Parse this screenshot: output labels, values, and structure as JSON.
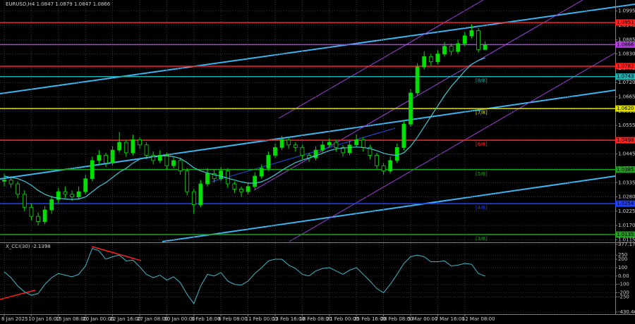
{
  "chart_data": {
    "type": "candlestick",
    "title": "EURUSD,H4 1.0847 1.0879 1.0847 1.0866",
    "categories": [
      "8 Jan 2025",
      null,
      null,
      null,
      "10 Jan 16:00",
      null,
      null,
      null,
      "15 Jan 08:00",
      null,
      null,
      null,
      "20 Jan 00:00",
      null,
      null,
      null,
      "22 Jan 16:00",
      null,
      null,
      null,
      "27 Jan 08:00",
      null,
      null,
      null,
      "30 Jan 00:00",
      null,
      null,
      null,
      "3 Feb 16:00",
      null,
      null,
      null,
      "6 Feb 08:00",
      null,
      null,
      null,
      "11 Feb 00:00",
      null,
      null,
      null,
      "13 Feb 16:00",
      null,
      null,
      null,
      "18 Feb 08:00",
      null,
      null,
      null,
      "21 Feb 00:00",
      null,
      null,
      null,
      "25 Feb 16:00",
      null,
      null,
      null,
      "28 Feb 08:00",
      null,
      null,
      null,
      "5 Mar 00:00",
      null,
      null,
      null,
      "7 Mar 16:00",
      null,
      null,
      null,
      "12 Mar 08:00",
      null,
      null,
      null
    ],
    "candles": [
      [
        1.034,
        1.037,
        1.032,
        1.0345
      ],
      [
        1.0345,
        1.036,
        1.0315,
        1.033
      ],
      [
        1.033,
        1.034,
        1.0275,
        1.029
      ],
      [
        1.029,
        1.0305,
        1.0225,
        1.024
      ],
      [
        1.024,
        1.0255,
        1.019,
        1.0205
      ],
      [
        1.0205,
        1.022,
        1.017,
        1.0185
      ],
      [
        1.0185,
        1.0245,
        1.0175,
        1.023
      ],
      [
        1.023,
        1.0285,
        1.0215,
        1.027
      ],
      [
        1.027,
        1.0315,
        1.0255,
        1.03
      ],
      [
        1.03,
        1.032,
        1.0275,
        1.029
      ],
      [
        1.029,
        1.0305,
        1.0265,
        1.028
      ],
      [
        1.028,
        1.032,
        1.027,
        1.03
      ],
      [
        1.03,
        1.0365,
        1.029,
        1.035
      ],
      [
        1.035,
        1.0435,
        1.034,
        1.042
      ],
      [
        1.042,
        1.046,
        1.0405,
        1.044
      ],
      [
        1.044,
        1.045,
        1.0395,
        1.041
      ],
      [
        1.041,
        1.0475,
        1.04,
        1.046
      ],
      [
        1.046,
        1.053,
        1.045,
        1.049
      ],
      [
        1.049,
        1.05,
        1.0435,
        1.045
      ],
      [
        1.045,
        1.052,
        1.044,
        1.05
      ],
      [
        1.05,
        1.051,
        1.0465,
        1.048
      ],
      [
        1.048,
        1.049,
        1.0425,
        1.044
      ],
      [
        1.044,
        1.0455,
        1.0405,
        1.042
      ],
      [
        1.042,
        1.046,
        1.041,
        1.044
      ],
      [
        1.044,
        1.045,
        1.0385,
        1.04
      ],
      [
        1.04,
        1.0435,
        1.039,
        1.042
      ],
      [
        1.042,
        1.043,
        1.0365,
        1.038
      ],
      [
        1.038,
        1.039,
        1.0285,
        1.03
      ],
      [
        1.03,
        1.031,
        1.0215,
        1.025
      ],
      [
        1.025,
        1.0345,
        1.024,
        1.033
      ],
      [
        1.033,
        1.039,
        1.032,
        1.037
      ],
      [
        1.037,
        1.0385,
        1.0335,
        1.035
      ],
      [
        1.035,
        1.0395,
        1.034,
        1.038
      ],
      [
        1.038,
        1.039,
        1.0315,
        1.033
      ],
      [
        1.033,
        1.034,
        1.0295,
        1.031
      ],
      [
        1.031,
        1.032,
        1.028,
        1.03
      ],
      [
        1.03,
        1.0335,
        1.029,
        1.032
      ],
      [
        1.032,
        1.0375,
        1.031,
        1.036
      ],
      [
        1.036,
        1.0405,
        1.035,
        1.039
      ],
      [
        1.039,
        1.0455,
        1.038,
        1.044
      ],
      [
        1.044,
        1.0485,
        1.043,
        1.047
      ],
      [
        1.047,
        1.0515,
        1.046,
        1.05
      ],
      [
        1.05,
        1.051,
        1.0465,
        1.048
      ],
      [
        1.048,
        1.049,
        1.0455,
        1.047
      ],
      [
        1.047,
        1.048,
        1.0425,
        1.044
      ],
      [
        1.044,
        1.045,
        1.0415,
        1.043
      ],
      [
        1.043,
        1.0475,
        1.042,
        1.046
      ],
      [
        1.046,
        1.0495,
        1.045,
        1.048
      ],
      [
        1.048,
        1.0505,
        1.047,
        1.049
      ],
      [
        1.049,
        1.05,
        1.0455,
        1.047
      ],
      [
        1.047,
        1.048,
        1.0435,
        1.045
      ],
      [
        1.045,
        1.0495,
        1.044,
        1.048
      ],
      [
        1.048,
        1.052,
        1.047,
        1.05
      ],
      [
        1.05,
        1.051,
        1.0455,
        1.047
      ],
      [
        1.047,
        1.048,
        1.0425,
        1.044
      ],
      [
        1.044,
        1.045,
        1.0385,
        1.04
      ],
      [
        1.04,
        1.041,
        1.0365,
        1.038
      ],
      [
        1.038,
        1.0435,
        1.037,
        1.042
      ],
      [
        1.042,
        1.0485,
        1.041,
        1.047
      ],
      [
        1.047,
        1.0575,
        1.046,
        1.056
      ],
      [
        1.056,
        1.0695,
        1.055,
        1.068
      ],
      [
        1.068,
        1.0795,
        1.067,
        1.078
      ],
      [
        1.078,
        1.084,
        1.077,
        1.082
      ],
      [
        1.082,
        1.083,
        1.0785,
        1.08
      ],
      [
        1.08,
        1.0845,
        1.079,
        1.083
      ],
      [
        1.083,
        1.0875,
        1.082,
        1.086
      ],
      [
        1.086,
        1.087,
        1.0825,
        1.084
      ],
      [
        1.084,
        1.0885,
        1.083,
        1.087
      ],
      [
        1.087,
        1.0915,
        1.086,
        1.09
      ],
      [
        1.09,
        1.0945,
        1.089,
        1.092
      ],
      [
        1.092,
        1.093,
        1.0835,
        1.0847
      ],
      [
        1.0847,
        1.0879,
        1.0847,
        1.0866
      ]
    ],
    "colors": {
      "up": "#00e000",
      "down": "#000000",
      "wick": "#00e000"
    },
    "ma": {
      "color": "#40c8d0",
      "values": [
        1.036,
        1.0355,
        1.035,
        1.034,
        1.0325,
        1.0305,
        1.029,
        1.028,
        1.0275,
        1.0272,
        1.027,
        1.0272,
        1.028,
        1.03,
        1.032,
        1.0335,
        1.0355,
        1.0375,
        1.039,
        1.041,
        1.0425,
        1.0432,
        1.0435,
        1.0438,
        1.0438,
        1.0435,
        1.0428,
        1.0412,
        1.0392,
        1.038,
        1.0372,
        1.0365,
        1.036,
        1.0352,
        1.0345,
        1.0338,
        1.0333,
        1.0333,
        1.0338,
        1.035,
        1.0365,
        1.0382,
        1.0398,
        1.0412,
        1.0422,
        1.043,
        1.0438,
        1.0448,
        1.0458,
        1.0465,
        1.0468,
        1.047,
        1.0472,
        1.047,
        1.0466,
        1.0458,
        1.0448,
        1.0442,
        1.044,
        1.045,
        1.0475,
        1.051,
        1.055,
        1.059,
        1.063,
        1.067,
        1.0705,
        1.0735,
        1.0765,
        1.079,
        1.0805,
        1.0815
      ]
    },
    "ylim": [
      1.0108,
      1.1016
    ],
    "yticks": [
      1.0115,
      {
        "value": 1.017,
        "label": "1.0170"
      },
      1.0225,
      {
        "value": 1.028,
        "label": "1.0280"
      },
      1.0335,
      {
        "value": 1.039,
        "label": "1.0390"
      },
      1.0445,
      {
        "value": 1.05,
        "label": "1.0500"
      },
      1.0555,
      {
        "value": 1.061,
        "label": "1.0610"
      },
      1.0665,
      {
        "value": 1.072,
        "label": "1.0720"
      },
      1.0775,
      {
        "value": 1.083,
        "label": "1.0830"
      },
      1.0885,
      {
        "value": 1.094,
        "label": "1.0940"
      },
      1.0995
    ],
    "grid": true,
    "levels": [
      {
        "value": 1.0951,
        "color": "#ff2020"
      },
      {
        "value": 1.0866,
        "color": "#b040e0"
      },
      {
        "value": 1.0783,
        "color": "#ff2020"
      },
      {
        "value": 1.0743,
        "color": "#20b0b0",
        "tag": "[8/8]"
      },
      {
        "value": 1.062,
        "label": "1.0620",
        "color": "#e0e000",
        "tag": "[7/8]"
      },
      {
        "value": 1.0498,
        "color": "#ff2020",
        "tag": "[6/8]"
      },
      {
        "value": 1.0385,
        "color": "#20a020",
        "tag": "[5/8]"
      },
      {
        "value": 1.0254,
        "color": "#2040ff",
        "tag": "[4/8]"
      },
      {
        "value": 1.0135,
        "color": "#20a020",
        "tag": "[3/8]"
      }
    ],
    "indicator": {
      "title": "X_CCI(30) -2.1398",
      "color": "#40b8c8",
      "ylim": [
        -430.4658,
        377.1776
      ],
      "yticks": [
        -430.4658,
        -250,
        -200,
        -100,
        {
          "value": 0,
          "label": "0.00"
        },
        100,
        200,
        250,
        377.1776
      ],
      "values": [
        50,
        -20,
        -120,
        -190,
        -230,
        -210,
        -100,
        -20,
        30,
        10,
        -10,
        20,
        120,
        330,
        300,
        200,
        230,
        250,
        180,
        190,
        110,
        20,
        -20,
        10,
        -50,
        -10,
        -80,
        -220,
        -330,
        -120,
        20,
        0,
        40,
        -60,
        -100,
        -110,
        -60,
        30,
        100,
        180,
        200,
        200,
        130,
        90,
        20,
        0,
        60,
        90,
        100,
        60,
        20,
        70,
        100,
        20,
        -60,
        -150,
        -200,
        -100,
        20,
        150,
        230,
        250,
        230,
        170,
        170,
        180,
        120,
        130,
        150,
        140,
        30,
        -2.1398
      ]
    }
  }
}
